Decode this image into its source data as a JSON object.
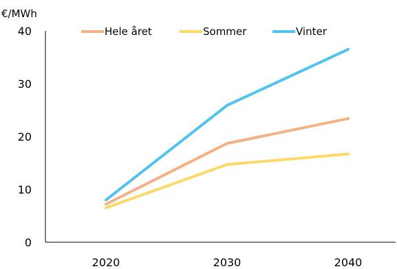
{
  "chart_data": {
    "type": "line",
    "title": "",
    "unit_label": "€/MWh",
    "xlabel": "",
    "ylabel": "",
    "categories": [
      "2020",
      "2030",
      "2040"
    ],
    "ylim": [
      0,
      40
    ],
    "yticks": [
      0,
      10,
      20,
      30,
      40
    ],
    "grid": false,
    "legend_position": "top",
    "series": [
      {
        "name": "Hele året",
        "color": "#f4b183",
        "values": [
          7.2,
          18.7,
          23.4
        ]
      },
      {
        "name": "Sommer",
        "color": "#ffd966",
        "values": [
          6.5,
          14.7,
          16.7
        ]
      },
      {
        "name": "Vinter",
        "color": "#4fc3f0",
        "values": [
          8.0,
          25.9,
          36.5
        ]
      }
    ]
  }
}
